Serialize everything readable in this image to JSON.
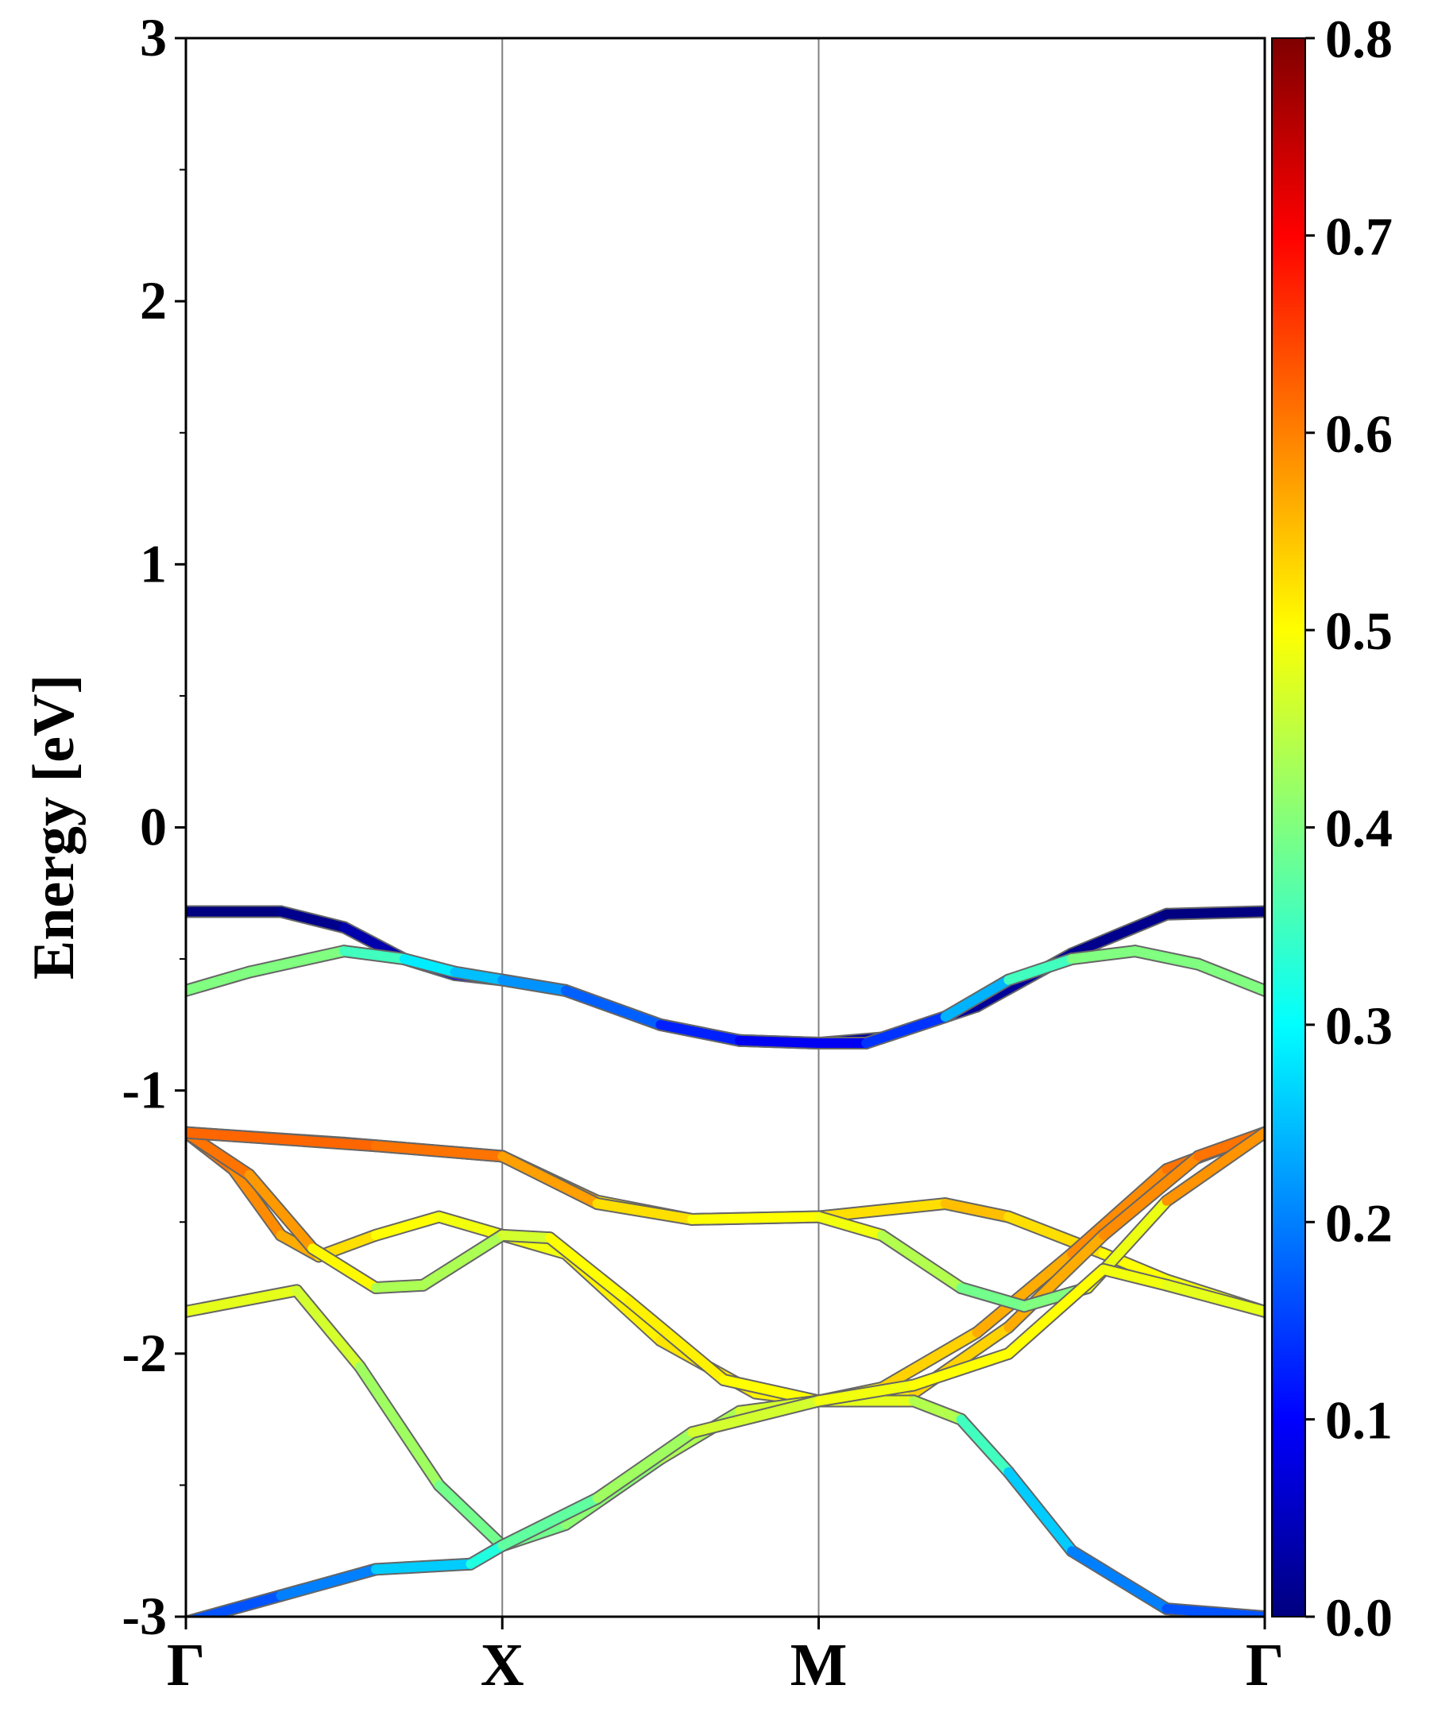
{
  "chart_data": {
    "type": "line",
    "title": "",
    "xlabel": "",
    "ylabel": "Energy [eV]",
    "ylim": [
      -3,
      3
    ],
    "y_ticks": [
      "-3",
      "-2",
      "-1",
      "0",
      "1",
      "2",
      "3"
    ],
    "x_ticks": [
      {
        "label": "Γ",
        "pos": 0
      },
      {
        "label": "X",
        "pos": 1
      },
      {
        "label": "M",
        "pos": 2
      },
      {
        "label": "Γ",
        "pos": 3.41
      }
    ],
    "grid": "vertical lines at high-symmetry points",
    "colorbar": {
      "colormap": "jet",
      "range": [
        0.0,
        0.8
      ],
      "tick_labels": [
        "0.0",
        "0.1",
        "0.2",
        "0.3",
        "0.4",
        "0.5",
        "0.6",
        "0.7",
        "0.8"
      ]
    },
    "series": [
      {
        "points": [
          [
            0,
            -0.32,
            0.0
          ],
          [
            0.3,
            -0.32,
            0.0
          ],
          [
            0.5,
            -0.38,
            0.02
          ],
          [
            0.69,
            -0.5,
            0.05
          ],
          [
            0.85,
            -0.56,
            0.08
          ],
          [
            1,
            -0.58,
            0.1
          ],
          [
            1.2,
            -0.62,
            0.15
          ],
          [
            1.5,
            -0.75,
            0.05
          ],
          [
            1.75,
            -0.81,
            0.03
          ],
          [
            2,
            -0.82,
            0.02
          ],
          [
            2.2,
            -0.8,
            0.02
          ],
          [
            2.5,
            -0.68,
            0.02
          ],
          [
            2.8,
            -0.48,
            0.02
          ],
          [
            3.1,
            -0.33,
            0.0
          ],
          [
            3.41,
            -0.32,
            0.0
          ]
        ]
      },
      {
        "points": [
          [
            0,
            -0.62,
            0.4
          ],
          [
            0.2,
            -0.55,
            0.4
          ],
          [
            0.5,
            -0.47,
            0.4
          ],
          [
            0.69,
            -0.5,
            0.3
          ],
          [
            0.85,
            -0.55,
            0.27
          ],
          [
            1,
            -0.58,
            0.23
          ],
          [
            1.2,
            -0.62,
            0.2
          ],
          [
            1.5,
            -0.75,
            0.15
          ],
          [
            1.75,
            -0.81,
            0.1
          ],
          [
            2,
            -0.82,
            0.08
          ],
          [
            2.15,
            -0.82,
            0.1
          ],
          [
            2.4,
            -0.72,
            0.18
          ],
          [
            2.6,
            -0.58,
            0.3
          ],
          [
            2.8,
            -0.5,
            0.4
          ],
          [
            3.0,
            -0.47,
            0.4
          ],
          [
            3.2,
            -0.52,
            0.4
          ],
          [
            3.41,
            -0.62,
            0.4
          ]
        ]
      },
      {
        "points": [
          [
            0,
            -1.16,
            0.62
          ],
          [
            0.5,
            -1.2,
            0.62
          ],
          [
            1,
            -1.25,
            0.6
          ],
          [
            1.3,
            -1.42,
            0.55
          ],
          [
            1.6,
            -1.49,
            0.5
          ],
          [
            2,
            -1.48,
            0.5
          ],
          [
            2.4,
            -1.43,
            0.55
          ],
          [
            2.6,
            -1.48,
            0.55
          ],
          [
            2.9,
            -1.62,
            0.5
          ],
          [
            3.1,
            -1.72,
            0.5
          ],
          [
            3.41,
            -1.84,
            0.48
          ]
        ]
      },
      {
        "points": [
          [
            0,
            -1.16,
            0.62
          ],
          [
            0.15,
            -1.3,
            0.6
          ],
          [
            0.3,
            -1.55,
            0.58
          ],
          [
            0.42,
            -1.63,
            0.55
          ],
          [
            0.6,
            -1.55,
            0.5
          ],
          [
            0.8,
            -1.48,
            0.5
          ],
          [
            1,
            -1.55,
            0.48
          ],
          [
            1.2,
            -1.62,
            0.5
          ],
          [
            1.5,
            -1.95,
            0.52
          ],
          [
            1.8,
            -2.15,
            0.52
          ],
          [
            2,
            -2.18,
            0.5
          ],
          [
            2.2,
            -2.13,
            0.52
          ],
          [
            2.5,
            -1.92,
            0.55
          ],
          [
            2.8,
            -1.62,
            0.58
          ],
          [
            3.1,
            -1.3,
            0.6
          ],
          [
            3.41,
            -1.16,
            0.62
          ]
        ]
      },
      {
        "points": [
          [
            0,
            -1.16,
            0.62
          ],
          [
            0.2,
            -1.32,
            0.6
          ],
          [
            0.4,
            -1.6,
            0.56
          ],
          [
            0.6,
            -1.75,
            0.45
          ],
          [
            0.75,
            -1.74,
            0.42
          ],
          [
            1,
            -1.55,
            0.45
          ],
          [
            1.15,
            -1.56,
            0.48
          ],
          [
            1.4,
            -1.8,
            0.52
          ],
          [
            1.7,
            -2.1,
            0.5
          ],
          [
            2,
            -2.18,
            0.5
          ],
          [
            2.3,
            -2.15,
            0.52
          ],
          [
            2.6,
            -1.9,
            0.55
          ],
          [
            2.9,
            -1.55,
            0.58
          ],
          [
            3.2,
            -1.25,
            0.6
          ],
          [
            3.41,
            -1.16,
            0.62
          ]
        ]
      },
      {
        "points": [
          [
            0,
            -1.16,
            0.62
          ],
          [
            0.6,
            -1.21,
            0.62
          ],
          [
            1,
            -1.25,
            0.6
          ],
          [
            1.3,
            -1.43,
            0.55
          ],
          [
            1.6,
            -1.49,
            0.5
          ],
          [
            2,
            -1.48,
            0.5
          ],
          [
            2.2,
            -1.55,
            0.48
          ],
          [
            2.45,
            -1.75,
            0.4
          ],
          [
            2.65,
            -1.82,
            0.38
          ],
          [
            2.85,
            -1.75,
            0.42
          ],
          [
            3.1,
            -1.42,
            0.55
          ],
          [
            3.41,
            -1.16,
            0.62
          ]
        ]
      },
      {
        "points": [
          [
            0,
            -1.84,
            0.48
          ],
          [
            0.35,
            -1.76,
            0.48
          ],
          [
            0.55,
            -2.05,
            0.45
          ],
          [
            0.8,
            -2.5,
            0.4
          ],
          [
            1,
            -2.73,
            0.38
          ],
          [
            1.2,
            -2.65,
            0.4
          ],
          [
            1.5,
            -2.4,
            0.42
          ],
          [
            1.75,
            -2.22,
            0.45
          ],
          [
            2,
            -2.18,
            0.48
          ],
          [
            2.3,
            -2.18,
            0.48
          ],
          [
            2.45,
            -2.25,
            0.4
          ],
          [
            2.6,
            -2.45,
            0.3
          ],
          [
            2.8,
            -2.75,
            0.22
          ],
          [
            3.1,
            -2.97,
            0.18
          ],
          [
            3.41,
            -3.0,
            0.15
          ]
        ]
      },
      {
        "points": [
          [
            0,
            -3.02,
            0.15
          ],
          [
            0.3,
            -2.92,
            0.18
          ],
          [
            0.6,
            -2.82,
            0.22
          ],
          [
            0.9,
            -2.8,
            0.3
          ],
          [
            1,
            -2.73,
            0.35
          ],
          [
            1.3,
            -2.55,
            0.4
          ],
          [
            1.6,
            -2.3,
            0.45
          ],
          [
            2,
            -2.18,
            0.48
          ],
          [
            2.3,
            -2.12,
            0.5
          ],
          [
            2.6,
            -2.0,
            0.5
          ],
          [
            2.9,
            -1.68,
            0.5
          ],
          [
            3.1,
            -1.74,
            0.48
          ],
          [
            3.41,
            -1.84,
            0.48
          ]
        ]
      }
    ]
  }
}
